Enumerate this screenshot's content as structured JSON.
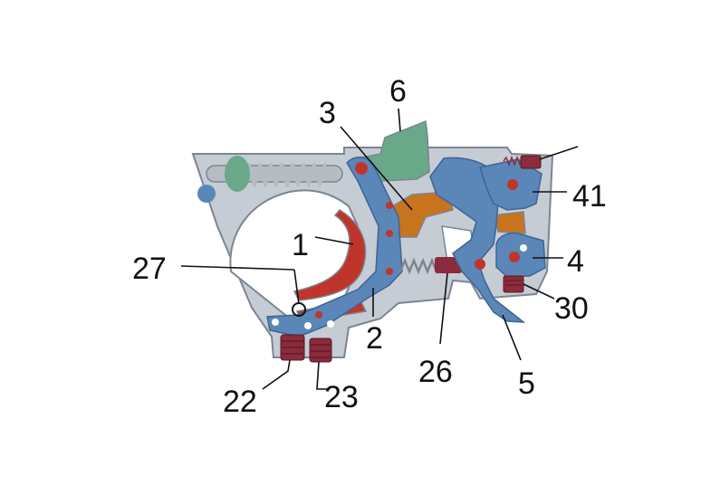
{
  "colors": {
    "frame": "#c6ccd4",
    "frame_edge": "#7c8592",
    "blue_part": "#5b86b8",
    "blue_dark": "#3e6594",
    "red_part": "#c0352b",
    "orange_part": "#c8731e",
    "green_part": "#6aa88a",
    "spring": "#b7bcc3",
    "screw": "#8b2b3c",
    "label": "#111111"
  },
  "labels": {
    "l1": "1",
    "l2": "2",
    "l3": "3",
    "l4": "4",
    "l5": "5",
    "l6": "6",
    "l22": "22",
    "l23": "23",
    "l26": "26",
    "l27": "27",
    "l30": "30",
    "l41": "41"
  }
}
